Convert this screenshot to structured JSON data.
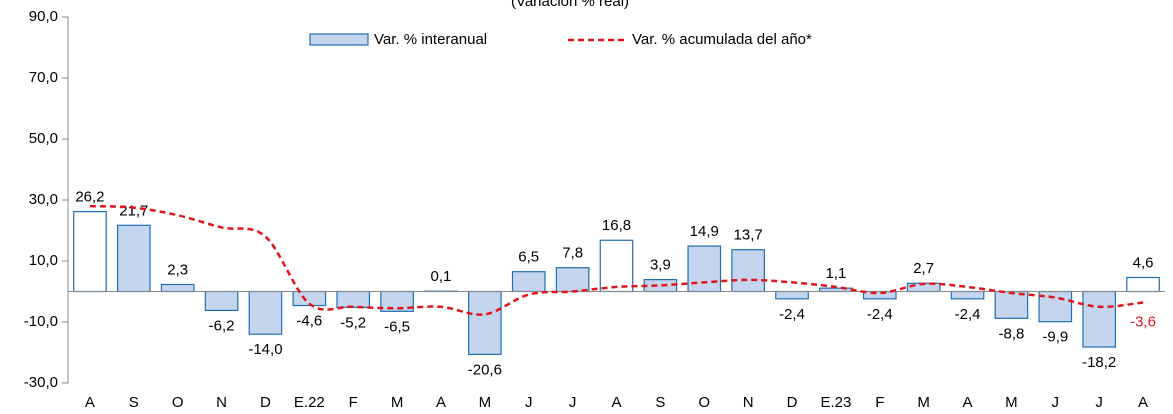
{
  "chart_data": {
    "type": "bar",
    "subtitle": "(Variación % real)",
    "categories": [
      "A",
      "S",
      "O",
      "N",
      "D",
      "E.22",
      "F",
      "M",
      "A",
      "M",
      "J",
      "J",
      "A",
      "S",
      "O",
      "N",
      "D",
      "E.23",
      "F",
      "M",
      "A",
      "M",
      "J",
      "J",
      "A"
    ],
    "series": [
      {
        "name": "Var. % interanual",
        "type": "bar",
        "color": "#c5d5ee",
        "edge_color": "#1f6fb5",
        "colors": [
          "#ffffff",
          "#c5d5ee",
          "#c5d5ee",
          "#c5d5ee",
          "#c5d5ee",
          "#c5d5ee",
          "#c5d5ee",
          "#c5d5ee",
          "#c5d5ee",
          "#c5d5ee",
          "#c5d5ee",
          "#c5d5ee",
          "#ffffff",
          "#c5d5ee",
          "#c5d5ee",
          "#c5d5ee",
          "#c5d5ee",
          "#c5d5ee",
          "#c5d5ee",
          "#c5d5ee",
          "#c5d5ee",
          "#c5d5ee",
          "#c5d5ee",
          "#c5d5ee",
          "#ffffff"
        ],
        "values": [
          26.2,
          21.7,
          2.3,
          -6.2,
          -14.0,
          -4.6,
          -5.2,
          -6.5,
          0.1,
          -20.6,
          6.5,
          7.8,
          16.8,
          3.9,
          14.9,
          13.7,
          -2.4,
          1.1,
          -2.4,
          2.7,
          -2.4,
          -8.8,
          -9.9,
          -18.2,
          4.6
        ],
        "value_labels": [
          "26,2",
          "21,7",
          "2,3",
          "-6,2",
          "-14,0",
          "-4,6",
          "-5,2",
          "-6,5",
          "0,1",
          "-20,6",
          "6,5",
          "7,8",
          "16,8",
          "3,9",
          "14,9",
          "13,7",
          "-2,4",
          "1,1",
          "-2,4",
          "2,7",
          "-2,4",
          "-8,8",
          "-9,9",
          "-18,2",
          "4,6"
        ]
      },
      {
        "name": "Var. % acumulada del año*",
        "type": "line",
        "color": "#e0161b",
        "dashed": true,
        "values": [
          28,
          27.5,
          25,
          21,
          18,
          -4,
          -5,
          -5.5,
          -5,
          -7.5,
          -1,
          0,
          1.5,
          2,
          3,
          3.8,
          3,
          1.5,
          -0.5,
          2.5,
          1.5,
          -0.5,
          -2,
          -5,
          -3.6
        ],
        "value_labels": [
          null,
          null,
          null,
          null,
          null,
          null,
          null,
          null,
          null,
          null,
          null,
          null,
          null,
          null,
          null,
          null,
          null,
          null,
          null,
          null,
          null,
          null,
          null,
          null,
          "-3,6"
        ]
      }
    ],
    "ylim": [
      -30,
      90
    ],
    "yticks": [
      {
        "value": -30,
        "label": "-30,0"
      },
      {
        "value": -10,
        "label": "-10,0"
      },
      {
        "value": 10,
        "label": "10,0"
      },
      {
        "value": 30,
        "label": "30,0"
      },
      {
        "value": 50,
        "label": "50,0"
      },
      {
        "value": 70,
        "label": "70,0"
      },
      {
        "value": 90,
        "label": "90,0"
      }
    ],
    "grid": false,
    "legend": "top"
  }
}
